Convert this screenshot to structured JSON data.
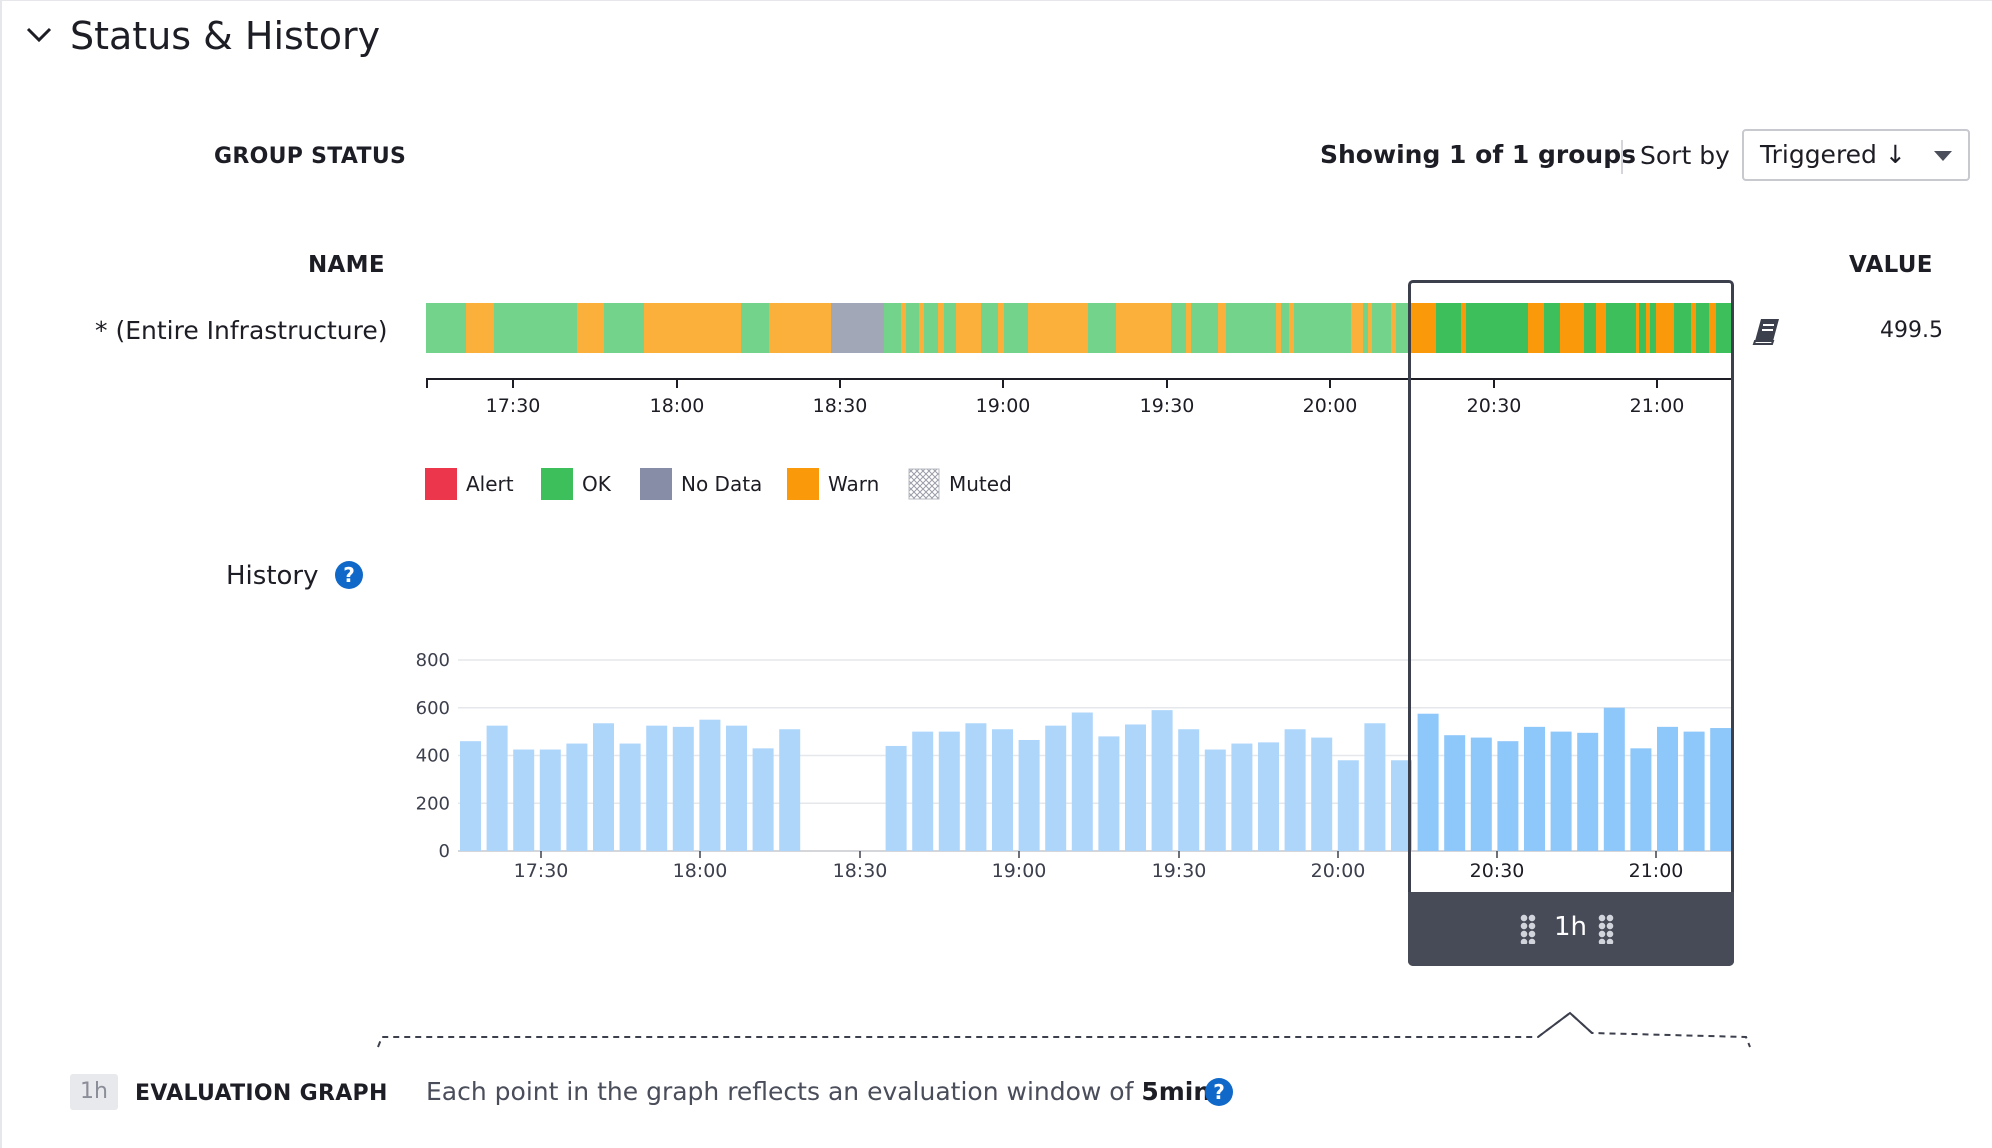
{
  "section": {
    "title": "Status & History"
  },
  "group_status": {
    "heading": "GROUP STATUS",
    "showing": "Showing 1 of 1 groups",
    "sort_label": "Sort by",
    "sort_value": "Triggered ↓"
  },
  "table": {
    "name_header": "NAME",
    "value_header": "VALUE",
    "row": {
      "name": "* (Entire Infrastructure)",
      "value": "499.5"
    }
  },
  "colors": {
    "ok": "#74d38b",
    "ok_sel": "#3dbf5c",
    "warn": "#fbb03b",
    "warn_sel": "#fa9a0a",
    "nodata": "#a2a7b8",
    "alert": "#eb364b",
    "bar": "#aed6fb",
    "bar_sel": "#8ec7f9",
    "selection_border": "#3c3f4c",
    "selection_handle": "#474a57",
    "help": "#1069c9"
  },
  "status_bar": {
    "times": [
      "17:30",
      "18:00",
      "18:30",
      "19:00",
      "19:30",
      "20:00",
      "20:30",
      "21:00"
    ],
    "segments": [
      [
        "ok",
        0,
        40
      ],
      [
        "warn",
        40,
        68
      ],
      [
        "ok",
        68,
        151
      ],
      [
        "warn",
        151,
        178
      ],
      [
        "ok",
        178,
        218
      ],
      [
        "warn",
        218,
        315
      ],
      [
        "ok",
        315,
        343
      ],
      [
        "warn",
        343,
        405
      ],
      [
        "nodata",
        405,
        458
      ],
      [
        "ok",
        458,
        475
      ],
      [
        "warn",
        475,
        480
      ],
      [
        "ok",
        480,
        493
      ],
      [
        "warn",
        493,
        498
      ],
      [
        "ok",
        498,
        512
      ],
      [
        "warn",
        512,
        518
      ],
      [
        "ok",
        518,
        530
      ],
      [
        "warn",
        530,
        555
      ],
      [
        "ok",
        555,
        572
      ],
      [
        "warn",
        572,
        578
      ],
      [
        "ok",
        578,
        602
      ],
      [
        "warn",
        602,
        662
      ],
      [
        "ok",
        662,
        690
      ],
      [
        "warn",
        690,
        745
      ],
      [
        "ok",
        745,
        760
      ],
      [
        "warn",
        760,
        765
      ],
      [
        "ok",
        765,
        792
      ],
      [
        "warn",
        792,
        800
      ],
      [
        "ok",
        800,
        850
      ],
      [
        "warn",
        850,
        855
      ],
      [
        "ok",
        855,
        863
      ],
      [
        "warn",
        863,
        868
      ],
      [
        "ok",
        868,
        925
      ],
      [
        "warn",
        925,
        937
      ],
      [
        "ok",
        937,
        942
      ],
      [
        "warn",
        942,
        946
      ],
      [
        "ok",
        946,
        965
      ],
      [
        "warn",
        965,
        970
      ],
      [
        "ok",
        970,
        985
      ],
      [
        "warn",
        985,
        1010
      ],
      [
        "ok",
        1010,
        1035
      ],
      [
        "warn",
        1035,
        1040
      ],
      [
        "ok",
        1040,
        1102
      ],
      [
        "warn",
        1102,
        1118
      ],
      [
        "ok",
        1118,
        1134
      ],
      [
        "warn",
        1134,
        1158
      ],
      [
        "ok",
        1158,
        1170
      ],
      [
        "warn",
        1170,
        1180
      ],
      [
        "ok",
        1180,
        1210
      ],
      [
        "warn",
        1210,
        1213
      ],
      [
        "ok",
        1213,
        1220
      ],
      [
        "warn",
        1220,
        1224
      ],
      [
        "ok",
        1224,
        1230
      ],
      [
        "warn",
        1230,
        1248
      ],
      [
        "ok",
        1248,
        1265
      ],
      [
        "warn",
        1265,
        1270
      ],
      [
        "ok",
        1270,
        1283
      ],
      [
        "warn",
        1283,
        1290
      ],
      [
        "ok",
        1290,
        1308
      ]
    ]
  },
  "legend": [
    {
      "key": "alert",
      "label": "Alert"
    },
    {
      "key": "ok",
      "label": "OK"
    },
    {
      "key": "nodata",
      "label": "No Data"
    },
    {
      "key": "warn",
      "label": "Warn"
    },
    {
      "key": "muted",
      "label": "Muted"
    }
  ],
  "history": {
    "label": "History",
    "help_glyph": "?",
    "selection_label": "1h"
  },
  "chart_data": {
    "type": "bar",
    "yticks": [
      0,
      200,
      400,
      600,
      800
    ],
    "ylim": [
      0,
      800
    ],
    "xticks": [
      "17:30",
      "18:00",
      "18:30",
      "19:00",
      "19:30",
      "20:00",
      "20:30",
      "21:00"
    ],
    "series": [
      {
        "values": [
          460,
          525,
          425,
          425,
          450,
          535,
          450,
          525,
          520,
          550,
          525,
          430,
          510,
          null,
          null,
          null,
          440,
          500,
          500,
          535,
          510,
          465,
          525,
          580,
          480,
          530,
          590,
          510,
          425,
          450,
          455,
          510,
          475,
          380,
          535,
          380,
          575,
          485,
          475,
          460,
          520,
          500,
          495,
          600,
          430,
          520,
          500,
          515
        ]
      }
    ]
  },
  "evaluation": {
    "badge": "1h",
    "heading": "EVALUATION GRAPH",
    "text": "Each point in the graph reflects an evaluation window of ",
    "window": "5min",
    "help_glyph": "?"
  }
}
